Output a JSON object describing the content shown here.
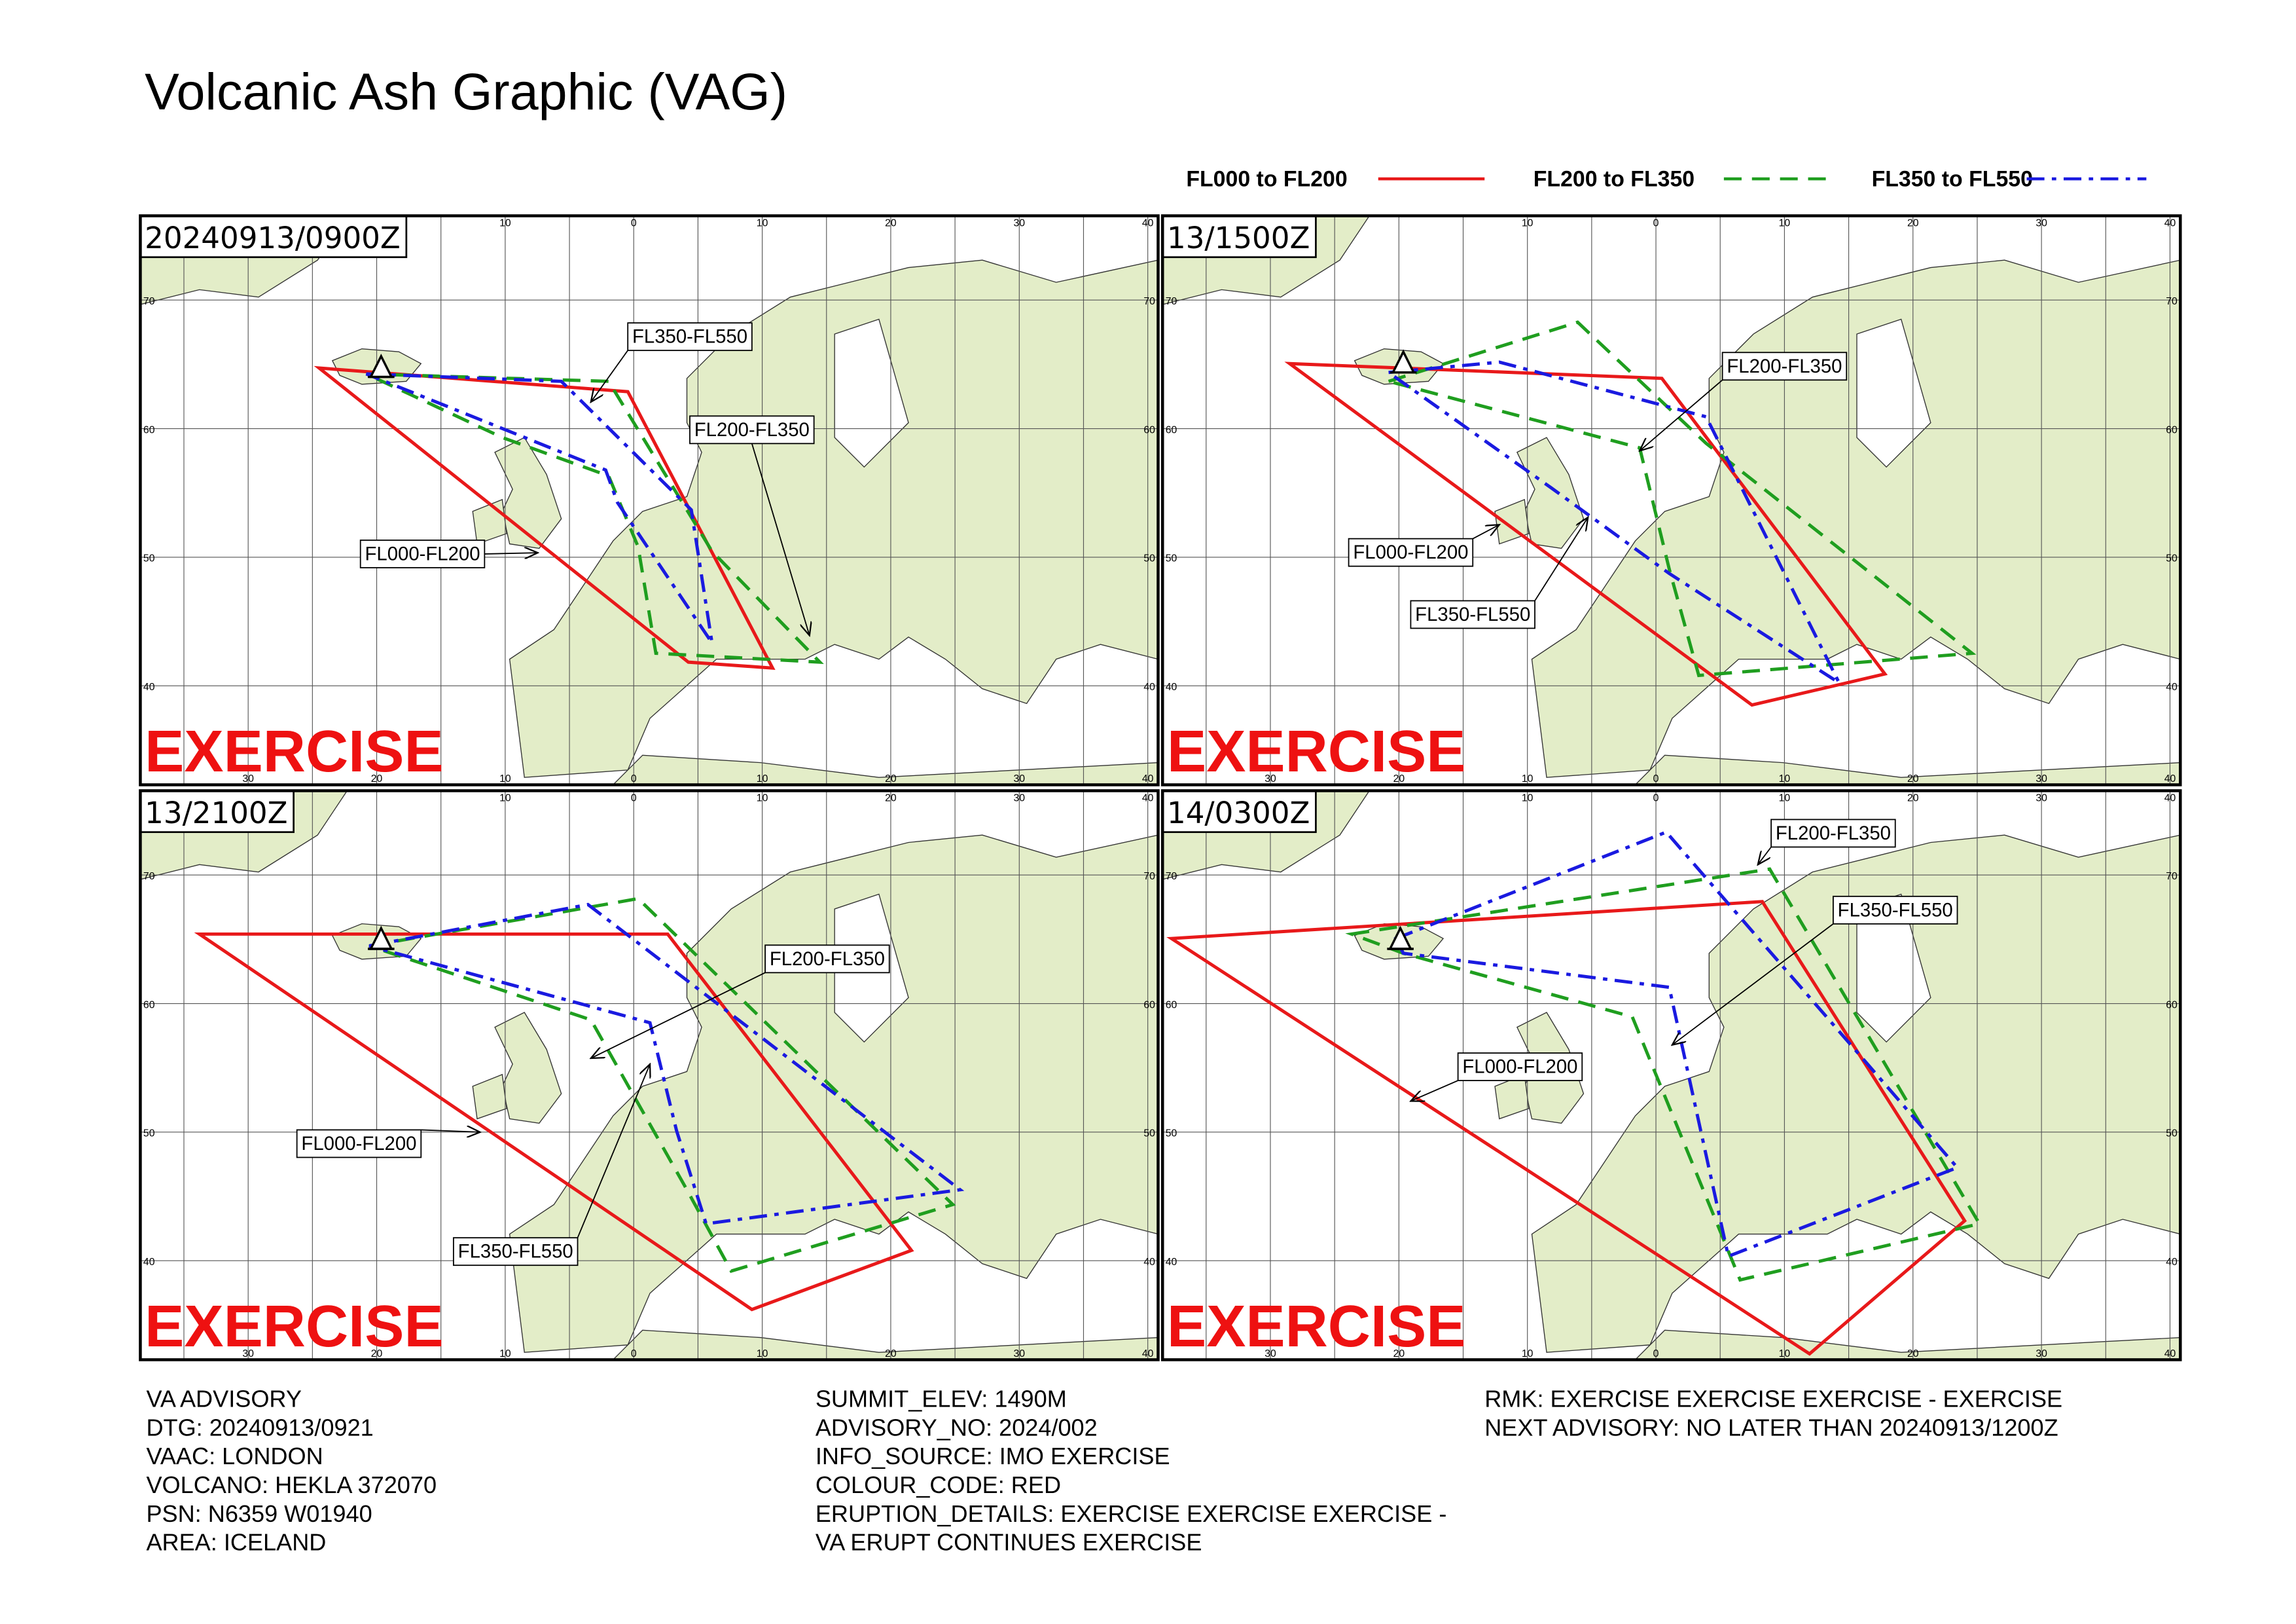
{
  "header": {
    "title": "Volcanic Ash Graphic (VAG)"
  },
  "legend": [
    {
      "label": "FL000 to FL200",
      "color": "#e8191a"
    },
    {
      "label": "FL200 to FL350",
      "color": "#1f9e1f"
    },
    {
      "label": "FL350 to FL550",
      "color": "#1a1ae0"
    }
  ],
  "map_axes": {
    "lon_labels": [
      30,
      20,
      10,
      0,
      10,
      20,
      30,
      40
    ],
    "lat_labels": [
      70,
      60,
      50,
      40
    ]
  },
  "panels": [
    {
      "time": "20240913/0900Z",
      "watermark": "EXERCISE",
      "labels": [
        "FL350-FL550",
        "FL200-FL350",
        "FL000-FL200"
      ]
    },
    {
      "time": "13/1500Z",
      "watermark": "EXERCISE",
      "labels": [
        "FL200-FL350",
        "FL000-FL200",
        "FL350-FL550"
      ]
    },
    {
      "time": "13/2100Z",
      "watermark": "EXERCISE",
      "labels": [
        "FL200-FL350",
        "FL000-FL200",
        "FL350-FL550"
      ]
    },
    {
      "time": "14/0300Z",
      "watermark": "EXERCISE",
      "labels": [
        "FL200-FL350",
        "FL350-FL550",
        "FL000-FL200"
      ]
    }
  ],
  "advisory": {
    "columns": [
      [
        "VA ADVISORY",
        "DTG: 20240913/0921",
        "VAAC: LONDON",
        "VOLCANO: HEKLA 372070",
        "PSN: N6359 W01940",
        "AREA: ICELAND"
      ],
      [
        "SUMMIT_ELEV: 1490M",
        "ADVISORY_NO: 2024/002",
        "INFO_SOURCE: IMO EXERCISE",
        "COLOUR_CODE: RED",
        "ERUPTION_DETAILS: EXERCISE EXERCISE EXERCISE -",
        "VA ERUPT CONTINUES EXERCISE"
      ],
      [
        "RMK: EXERCISE EXERCISE EXERCISE - EXERCISE",
        "NEXT ADVISORY: NO LATER THAN 20240913/1200Z"
      ]
    ]
  }
}
